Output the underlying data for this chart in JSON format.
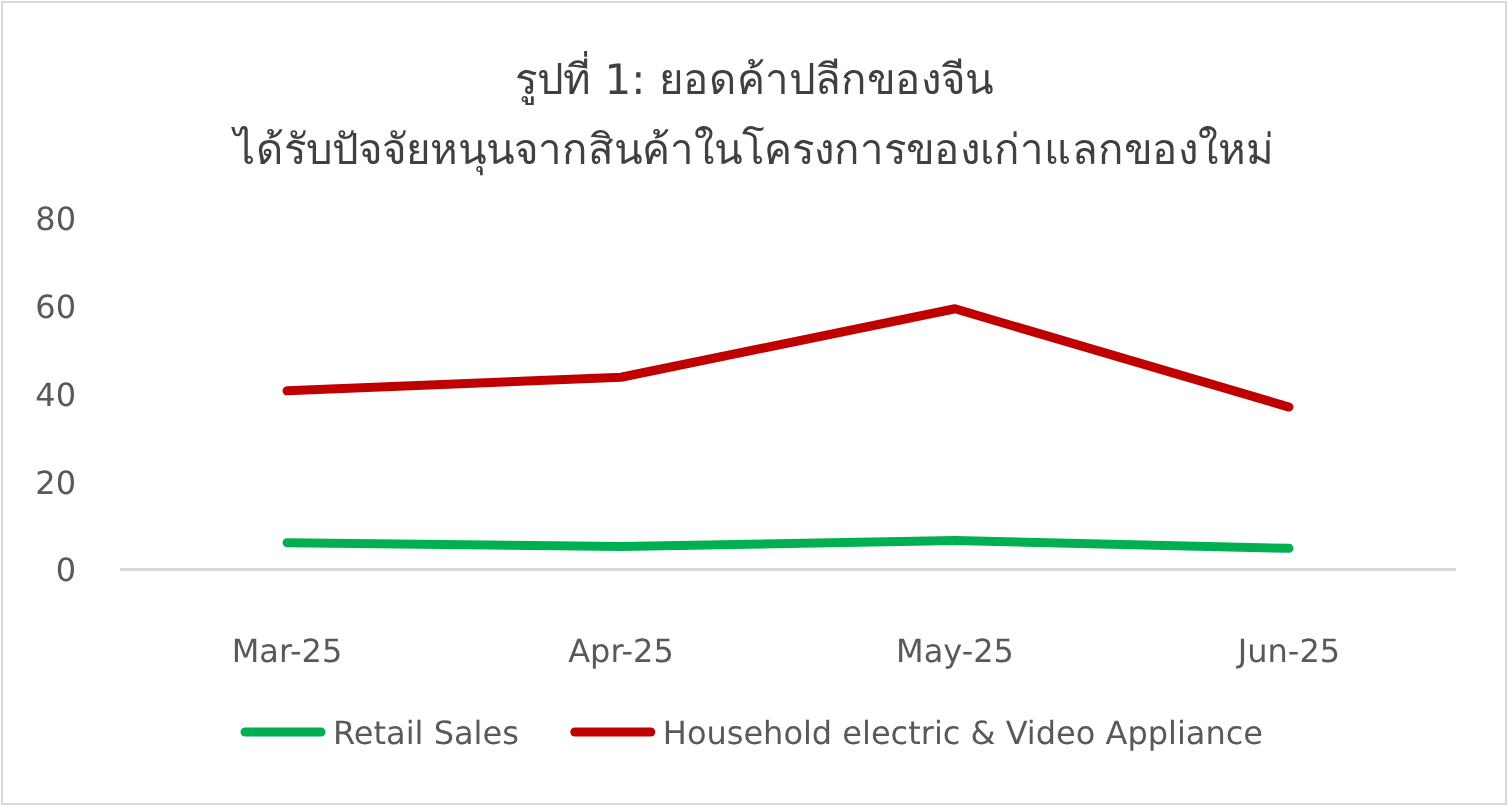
{
  "chart_data": {
    "type": "line",
    "title": "รูปที่ 1: ยอดค้าปลีกของจีน",
    "subtitle": "ได้รับปัจจัยหนุนจากสินค้าในโครงการของเก่าแลกของใหม่",
    "categories": [
      "Mar-25",
      "Apr-25",
      "May-25",
      "Jun-25"
    ],
    "series": [
      {
        "name": "Retail Sales",
        "color": "#00b050",
        "values": [
          6.1,
          5.2,
          6.6,
          4.8
        ]
      },
      {
        "name": "Household electric & Video Appliance",
        "color": "#c00000",
        "values": [
          40.7,
          43.8,
          59.4,
          37.0
        ]
      }
    ],
    "ylim": [
      0,
      80
    ],
    "yticks": [
      0,
      20,
      40,
      60,
      80
    ],
    "grid": false,
    "legend": "bottom",
    "marker": "none",
    "line_style": "solid"
  }
}
